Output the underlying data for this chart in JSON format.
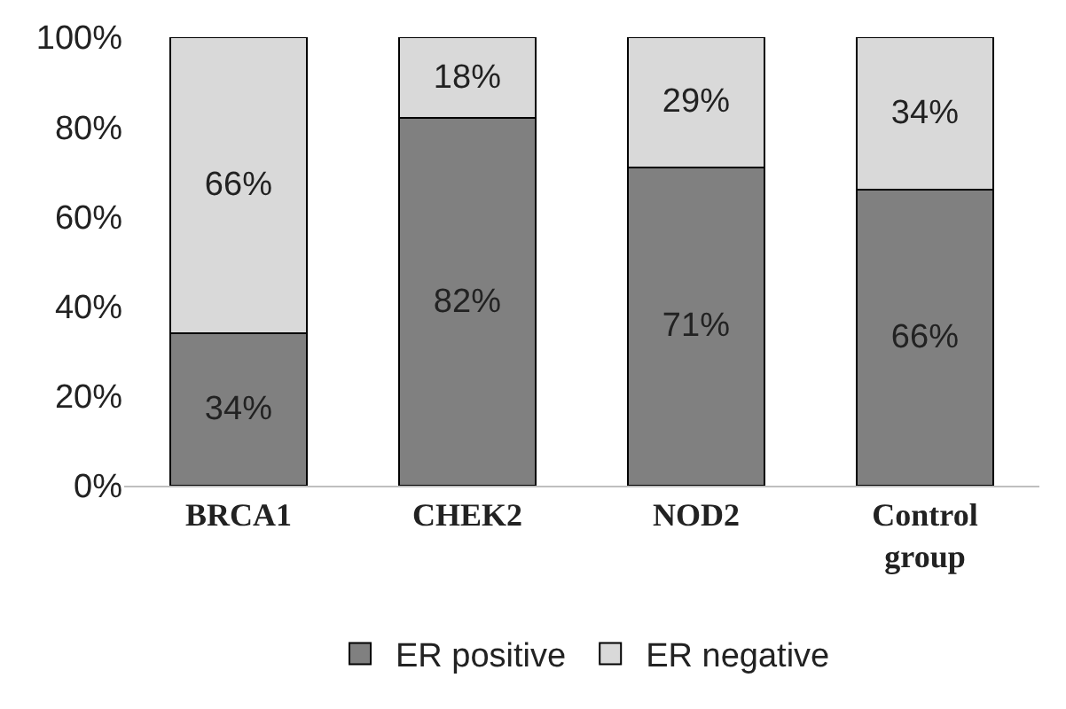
{
  "chart_data": {
    "type": "bar",
    "stacked": true,
    "categories": [
      "BRCA1",
      "CHEK2",
      "NOD2",
      "Control group"
    ],
    "series": [
      {
        "name": "ER positive",
        "color": "#808080",
        "values": [
          34,
          82,
          71,
          66
        ],
        "value_labels": [
          "34%",
          "82%",
          "71%",
          "66%"
        ]
      },
      {
        "name": "ER negative",
        "color": "#d9d9d9",
        "values": [
          66,
          18,
          29,
          34
        ],
        "value_labels": [
          "66%",
          "18%",
          "29%",
          "34%"
        ]
      }
    ],
    "ylim": [
      0,
      100
    ],
    "yticks": [
      {
        "value": 0,
        "label": "0%"
      },
      {
        "value": 20,
        "label": "20%"
      },
      {
        "value": 40,
        "label": "40%"
      },
      {
        "value": 60,
        "label": "60%"
      },
      {
        "value": 80,
        "label": "80%"
      },
      {
        "value": 100,
        "label": "100%"
      }
    ],
    "grid": false,
    "legend": "bottom"
  }
}
